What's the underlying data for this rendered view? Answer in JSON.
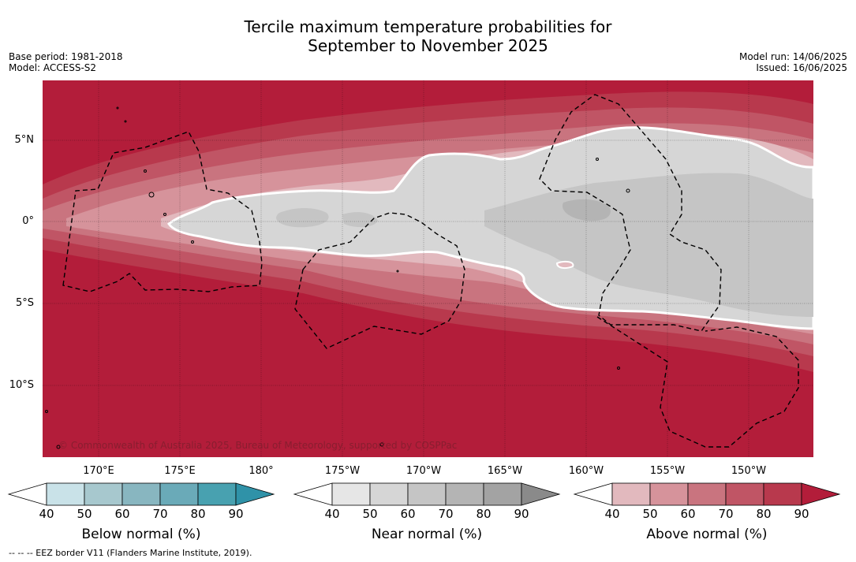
{
  "title_line1": "Tercile maximum temperature probabilities for",
  "title_line2": "September to November 2025",
  "base_period": "Base period: 1981-2018",
  "model": "Model: ACCESS-S2",
  "model_run": "Model run: 14/06/2025",
  "issued": "Issued: 16/06/2025",
  "lat_labels": [
    "5°N",
    "0°",
    "5°S",
    "10°S"
  ],
  "lon_labels": [
    "170°E",
    "175°E",
    "180°",
    "175°W",
    "170°W",
    "165°W",
    "160°W",
    "155°W",
    "150°W"
  ],
  "copyright": "© Commonwealth of Australia 2025, Bureau of Meteorology, supported by COSPPac",
  "footnote": "--  --  -- EEZ border V11 (Flanders Marine Institute, 2019).",
  "colorbars": [
    {
      "title": "Below normal (%)",
      "ticks": [
        "40",
        "50",
        "60",
        "70",
        "80",
        "90"
      ],
      "colors": [
        "#c9e2e8",
        "#a7c8ce",
        "#88b6c0",
        "#6aaab8",
        "#48a1b0",
        "#2f92a8"
      ]
    },
    {
      "title": "Near normal (%)",
      "ticks": [
        "40",
        "50",
        "60",
        "70",
        "80",
        "90"
      ],
      "colors": [
        "#e6e6e6",
        "#d6d6d6",
        "#c5c5c5",
        "#b4b4b4",
        "#a3a3a3",
        "#8a8a8a"
      ]
    },
    {
      "title": "Above normal (%)",
      "ticks": [
        "40",
        "50",
        "60",
        "70",
        "80",
        "90"
      ],
      "colors": [
        "#e2b9be",
        "#d6939b",
        "#c9747f",
        "#c05565",
        "#b8394d",
        "#b31d3a"
      ]
    }
  ]
}
